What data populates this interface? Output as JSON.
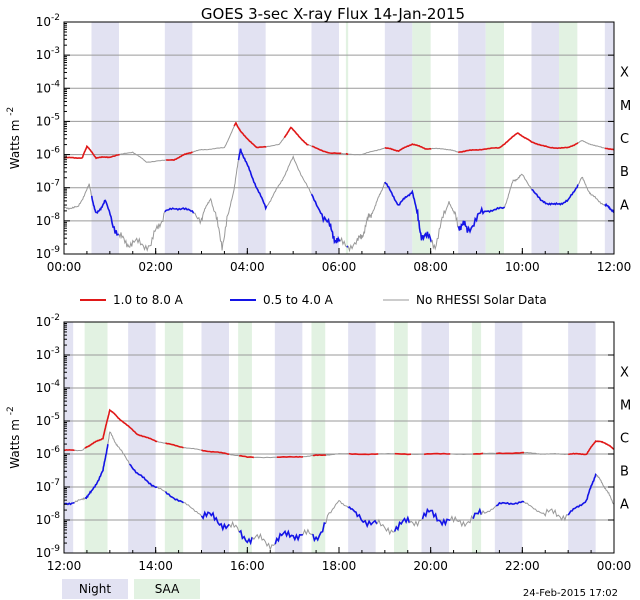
{
  "title": "GOES 3-sec X-ray Flux    14-Jan-2015",
  "colors": {
    "long": "#e01818",
    "short": "#1414e6",
    "no_data": "#999999",
    "night": "#e2e2f2",
    "saa": "#e2f2e2",
    "grid": "#9a9a9a"
  },
  "legend": {
    "long": "1.0 to 8.0 A",
    "short": "0.5 to 4.0 A",
    "no_data": "No RHESSI Solar Data",
    "night": "Night",
    "saa": "SAA"
  },
  "footer": "24-Feb-2015 17:02",
  "chart_data": [
    {
      "type": "line",
      "ylabel": "Watts m",
      "ylabel_exp": "-2",
      "yscale": "log",
      "ylim_exp": [
        -9,
        -2
      ],
      "ytick_exps": [
        -9,
        -8,
        -7,
        -6,
        -5,
        -4,
        -3,
        -2
      ],
      "flare_classes": [
        "A",
        "B",
        "C",
        "M",
        "X"
      ],
      "xlim": [
        0,
        12
      ],
      "xticks": [
        0,
        2,
        4,
        6,
        8,
        10,
        12
      ],
      "xtick_labels": [
        "00:00",
        "02:00",
        "04:00",
        "06:00",
        "08:00",
        "10:00",
        "12:00"
      ],
      "night": [
        [
          0.6,
          1.2
        ],
        [
          2.2,
          2.8
        ],
        [
          3.8,
          4.4
        ],
        [
          5.4,
          6.0
        ],
        [
          7.0,
          7.6
        ],
        [
          8.6,
          9.2
        ],
        [
          10.2,
          10.8
        ],
        [
          11.8,
          12.0
        ]
      ],
      "saa": [
        [
          6.15,
          6.2
        ],
        [
          7.6,
          8.0
        ],
        [
          9.2,
          9.6
        ],
        [
          10.8,
          11.2
        ]
      ],
      "series": [
        {
          "name": "1.0 to 8.0 A",
          "points": [
            [
              0,
              8e-07
            ],
            [
              0.4,
              8e-07
            ],
            [
              0.5,
              1.8e-06
            ],
            [
              0.7,
              8e-07
            ],
            [
              1.0,
              8.5e-07
            ],
            [
              1.5,
              1.2e-06
            ],
            [
              1.8,
              6e-07
            ],
            [
              2.4,
              7e-07
            ],
            [
              2.7,
              1.1e-06
            ],
            [
              3.0,
              1.4e-06
            ],
            [
              3.5,
              1.6e-06
            ],
            [
              3.75,
              9e-06
            ],
            [
              3.85,
              5e-06
            ],
            [
              4.2,
              1.6e-06
            ],
            [
              4.7,
              2e-06
            ],
            [
              4.95,
              6.5e-06
            ],
            [
              5.3,
              2e-06
            ],
            [
              5.8,
              1.1e-06
            ],
            [
              6.5,
              1e-06
            ],
            [
              7.0,
              1.6e-06
            ],
            [
              7.3,
              1.3e-06
            ],
            [
              7.6,
              2.1e-06
            ],
            [
              7.9,
              1.5e-06
            ],
            [
              8.3,
              1.5e-06
            ],
            [
              8.6,
              1.2e-06
            ],
            [
              9.0,
              1.4e-06
            ],
            [
              9.5,
              1.6e-06
            ],
            [
              9.9,
              4.5e-06
            ],
            [
              10.2,
              2.4e-06
            ],
            [
              10.6,
              1.6e-06
            ],
            [
              11.0,
              1.6e-06
            ],
            [
              11.3,
              2.6e-06
            ],
            [
              11.6,
              1.8e-06
            ],
            [
              12.0,
              1.4e-06
            ]
          ]
        },
        {
          "name": "0.5 to 4.0 A",
          "points": [
            [
              0,
              2.5e-08
            ],
            [
              0.3,
              2.5e-08
            ],
            [
              0.55,
              1.2e-07
            ],
            [
              0.7,
              1.5e-08
            ],
            [
              0.9,
              4e-08
            ],
            [
              1.2,
              3e-09
            ],
            [
              1.5,
              2e-09
            ],
            [
              1.9,
              2e-09
            ],
            [
              2.2,
              2e-08
            ],
            [
              2.6,
              2.5e-08
            ],
            [
              3.0,
              1.3e-08
            ],
            [
              3.2,
              5e-08
            ],
            [
              3.45,
              2e-09
            ],
            [
              3.7,
              8e-08
            ],
            [
              3.85,
              1.5e-06
            ],
            [
              4.1,
              2.2e-07
            ],
            [
              4.4,
              2.5e-08
            ],
            [
              4.7,
              1.2e-07
            ],
            [
              5.0,
              8e-07
            ],
            [
              5.4,
              6e-08
            ],
            [
              5.8,
              6e-09
            ],
            [
              6.0,
              2e-09
            ],
            [
              6.4,
              2e-09
            ],
            [
              6.6,
              8e-09
            ],
            [
              6.8,
              3e-08
            ],
            [
              7.0,
              1.5e-07
            ],
            [
              7.3,
              3e-08
            ],
            [
              7.6,
              8e-08
            ],
            [
              7.8,
              4e-09
            ],
            [
              8.1,
              2e-09
            ],
            [
              8.4,
              4e-08
            ],
            [
              8.6,
              8e-09
            ],
            [
              8.8,
              6e-09
            ],
            [
              9.2,
              2e-08
            ],
            [
              9.6,
              2.4e-08
            ],
            [
              9.8,
              1.6e-07
            ],
            [
              10.0,
              2.4e-07
            ],
            [
              10.4,
              4e-08
            ],
            [
              10.7,
              3e-08
            ],
            [
              11.0,
              4e-08
            ],
            [
              11.3,
              2e-07
            ],
            [
              11.5,
              6e-08
            ],
            [
              11.8,
              3e-08
            ],
            [
              12.0,
              2e-08
            ]
          ]
        }
      ]
    },
    {
      "type": "line",
      "ylabel": "Watts m",
      "ylabel_exp": "-2",
      "yscale": "log",
      "ylim_exp": [
        -9,
        -2
      ],
      "ytick_exps": [
        -9,
        -8,
        -7,
        -6,
        -5,
        -4,
        -3,
        -2
      ],
      "flare_classes": [
        "A",
        "B",
        "C",
        "M",
        "X"
      ],
      "xlim": [
        12,
        24
      ],
      "xticks": [
        12,
        14,
        16,
        18,
        20,
        22,
        24
      ],
      "xtick_labels": [
        "12:00",
        "14:00",
        "16:00",
        "18:00",
        "20:00",
        "22:00",
        "00:00"
      ],
      "night": [
        [
          12.0,
          12.2
        ],
        [
          13.4,
          14.0
        ],
        [
          15.0,
          15.6
        ],
        [
          16.6,
          17.2
        ],
        [
          18.2,
          18.8
        ],
        [
          19.8,
          20.4
        ],
        [
          21.4,
          22.0
        ],
        [
          23.0,
          23.6
        ]
      ],
      "saa": [
        [
          12.45,
          12.95
        ],
        [
          14.2,
          14.6
        ],
        [
          15.8,
          16.1
        ],
        [
          17.4,
          17.7
        ],
        [
          19.2,
          19.5
        ],
        [
          20.9,
          21.1
        ]
      ],
      "series": [
        {
          "name": "1.0 to 8.0 A",
          "points": [
            [
              12.0,
              1.3e-06
            ],
            [
              12.4,
              1.3e-06
            ],
            [
              12.6,
              2e-06
            ],
            [
              12.85,
              3e-06
            ],
            [
              13.0,
              2.2e-05
            ],
            [
              13.2,
              1.2e-05
            ],
            [
              13.6,
              4e-06
            ],
            [
              14.0,
              2.5e-06
            ],
            [
              14.5,
              1.7e-06
            ],
            [
              15.0,
              1.3e-06
            ],
            [
              15.5,
              1.05e-06
            ],
            [
              16.0,
              8e-07
            ],
            [
              17.0,
              8e-07
            ],
            [
              17.5,
              9e-07
            ],
            [
              18.0,
              1e-06
            ],
            [
              19.0,
              1e-06
            ],
            [
              20.0,
              1e-06
            ],
            [
              21.0,
              1e-06
            ],
            [
              22.0,
              1.1e-06
            ],
            [
              22.5,
              1e-06
            ],
            [
              23.0,
              1e-06
            ],
            [
              23.4,
              1e-06
            ],
            [
              23.6,
              2.5e-06
            ],
            [
              23.8,
              2.2e-06
            ],
            [
              24.0,
              1.4e-06
            ]
          ]
        },
        {
          "name": "0.5 to 4.0 A",
          "points": [
            [
              12.0,
              3e-08
            ],
            [
              12.4,
              4e-08
            ],
            [
              12.6,
              7e-08
            ],
            [
              12.85,
              3e-07
            ],
            [
              13.0,
              4.5e-06
            ],
            [
              13.2,
              1.5e-06
            ],
            [
              13.6,
              2.5e-07
            ],
            [
              14.0,
              1e-07
            ],
            [
              14.5,
              4e-08
            ],
            [
              15.0,
              1.5e-08
            ],
            [
              15.5,
              8e-09
            ],
            [
              16.0,
              3e-09
            ],
            [
              16.5,
              2e-09
            ],
            [
              17.0,
              4e-09
            ],
            [
              17.5,
              3e-09
            ],
            [
              18.0,
              4e-08
            ],
            [
              18.4,
              1.5e-08
            ],
            [
              19.0,
              5e-09
            ],
            [
              19.5,
              8e-09
            ],
            [
              20.0,
              1.5e-08
            ],
            [
              20.5,
              8e-09
            ],
            [
              21.0,
              1.2e-08
            ],
            [
              21.5,
              3e-08
            ],
            [
              22.0,
              3.5e-08
            ],
            [
              22.5,
              1.5e-08
            ],
            [
              23.0,
              1.5e-08
            ],
            [
              23.4,
              4e-08
            ],
            [
              23.6,
              2.5e-07
            ],
            [
              23.8,
              1e-07
            ],
            [
              24.0,
              3e-08
            ]
          ]
        }
      ]
    }
  ]
}
